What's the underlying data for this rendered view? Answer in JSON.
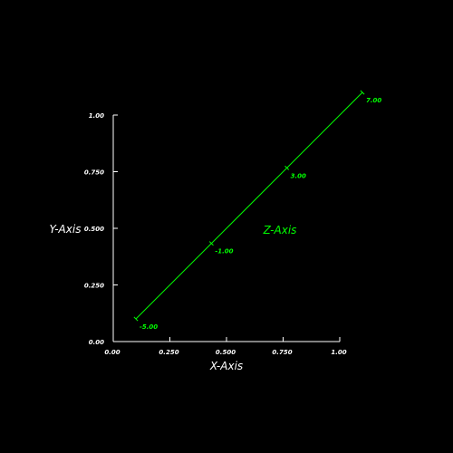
{
  "chart_data": {
    "type": "line",
    "title": "",
    "xlabel": "X-Axis",
    "ylabel": "Y-Axis",
    "zlabel": "Z-Axis",
    "xlim": [
      0.0,
      1.0
    ],
    "ylim": [
      0.0,
      1.0
    ],
    "x_ticks": [
      0.0,
      0.25,
      0.5,
      0.75,
      1.0
    ],
    "x_tick_labels": [
      "0.00",
      "0.250",
      "0.500",
      "0.750",
      "1.00"
    ],
    "y_ticks": [
      0.0,
      0.25,
      0.5,
      0.75,
      1.0
    ],
    "y_tick_labels": [
      "0.00",
      "0.250",
      "0.500",
      "0.750",
      "1.00"
    ],
    "z_axis": {
      "start": {
        "x": 0.1,
        "y": 0.1
      },
      "end": {
        "x": 1.1,
        "y": 1.1
      },
      "range": [
        -5.0,
        7.0
      ],
      "ticks": [
        -5.0,
        -1.0,
        3.0,
        7.0
      ],
      "tick_labels": [
        "-5.00",
        "-1.00",
        "3.00",
        "7.00"
      ]
    },
    "grid": false,
    "colors": {
      "background": "#000000",
      "xy_axes": "#ffffff",
      "z_axis": "#00ff00"
    }
  }
}
